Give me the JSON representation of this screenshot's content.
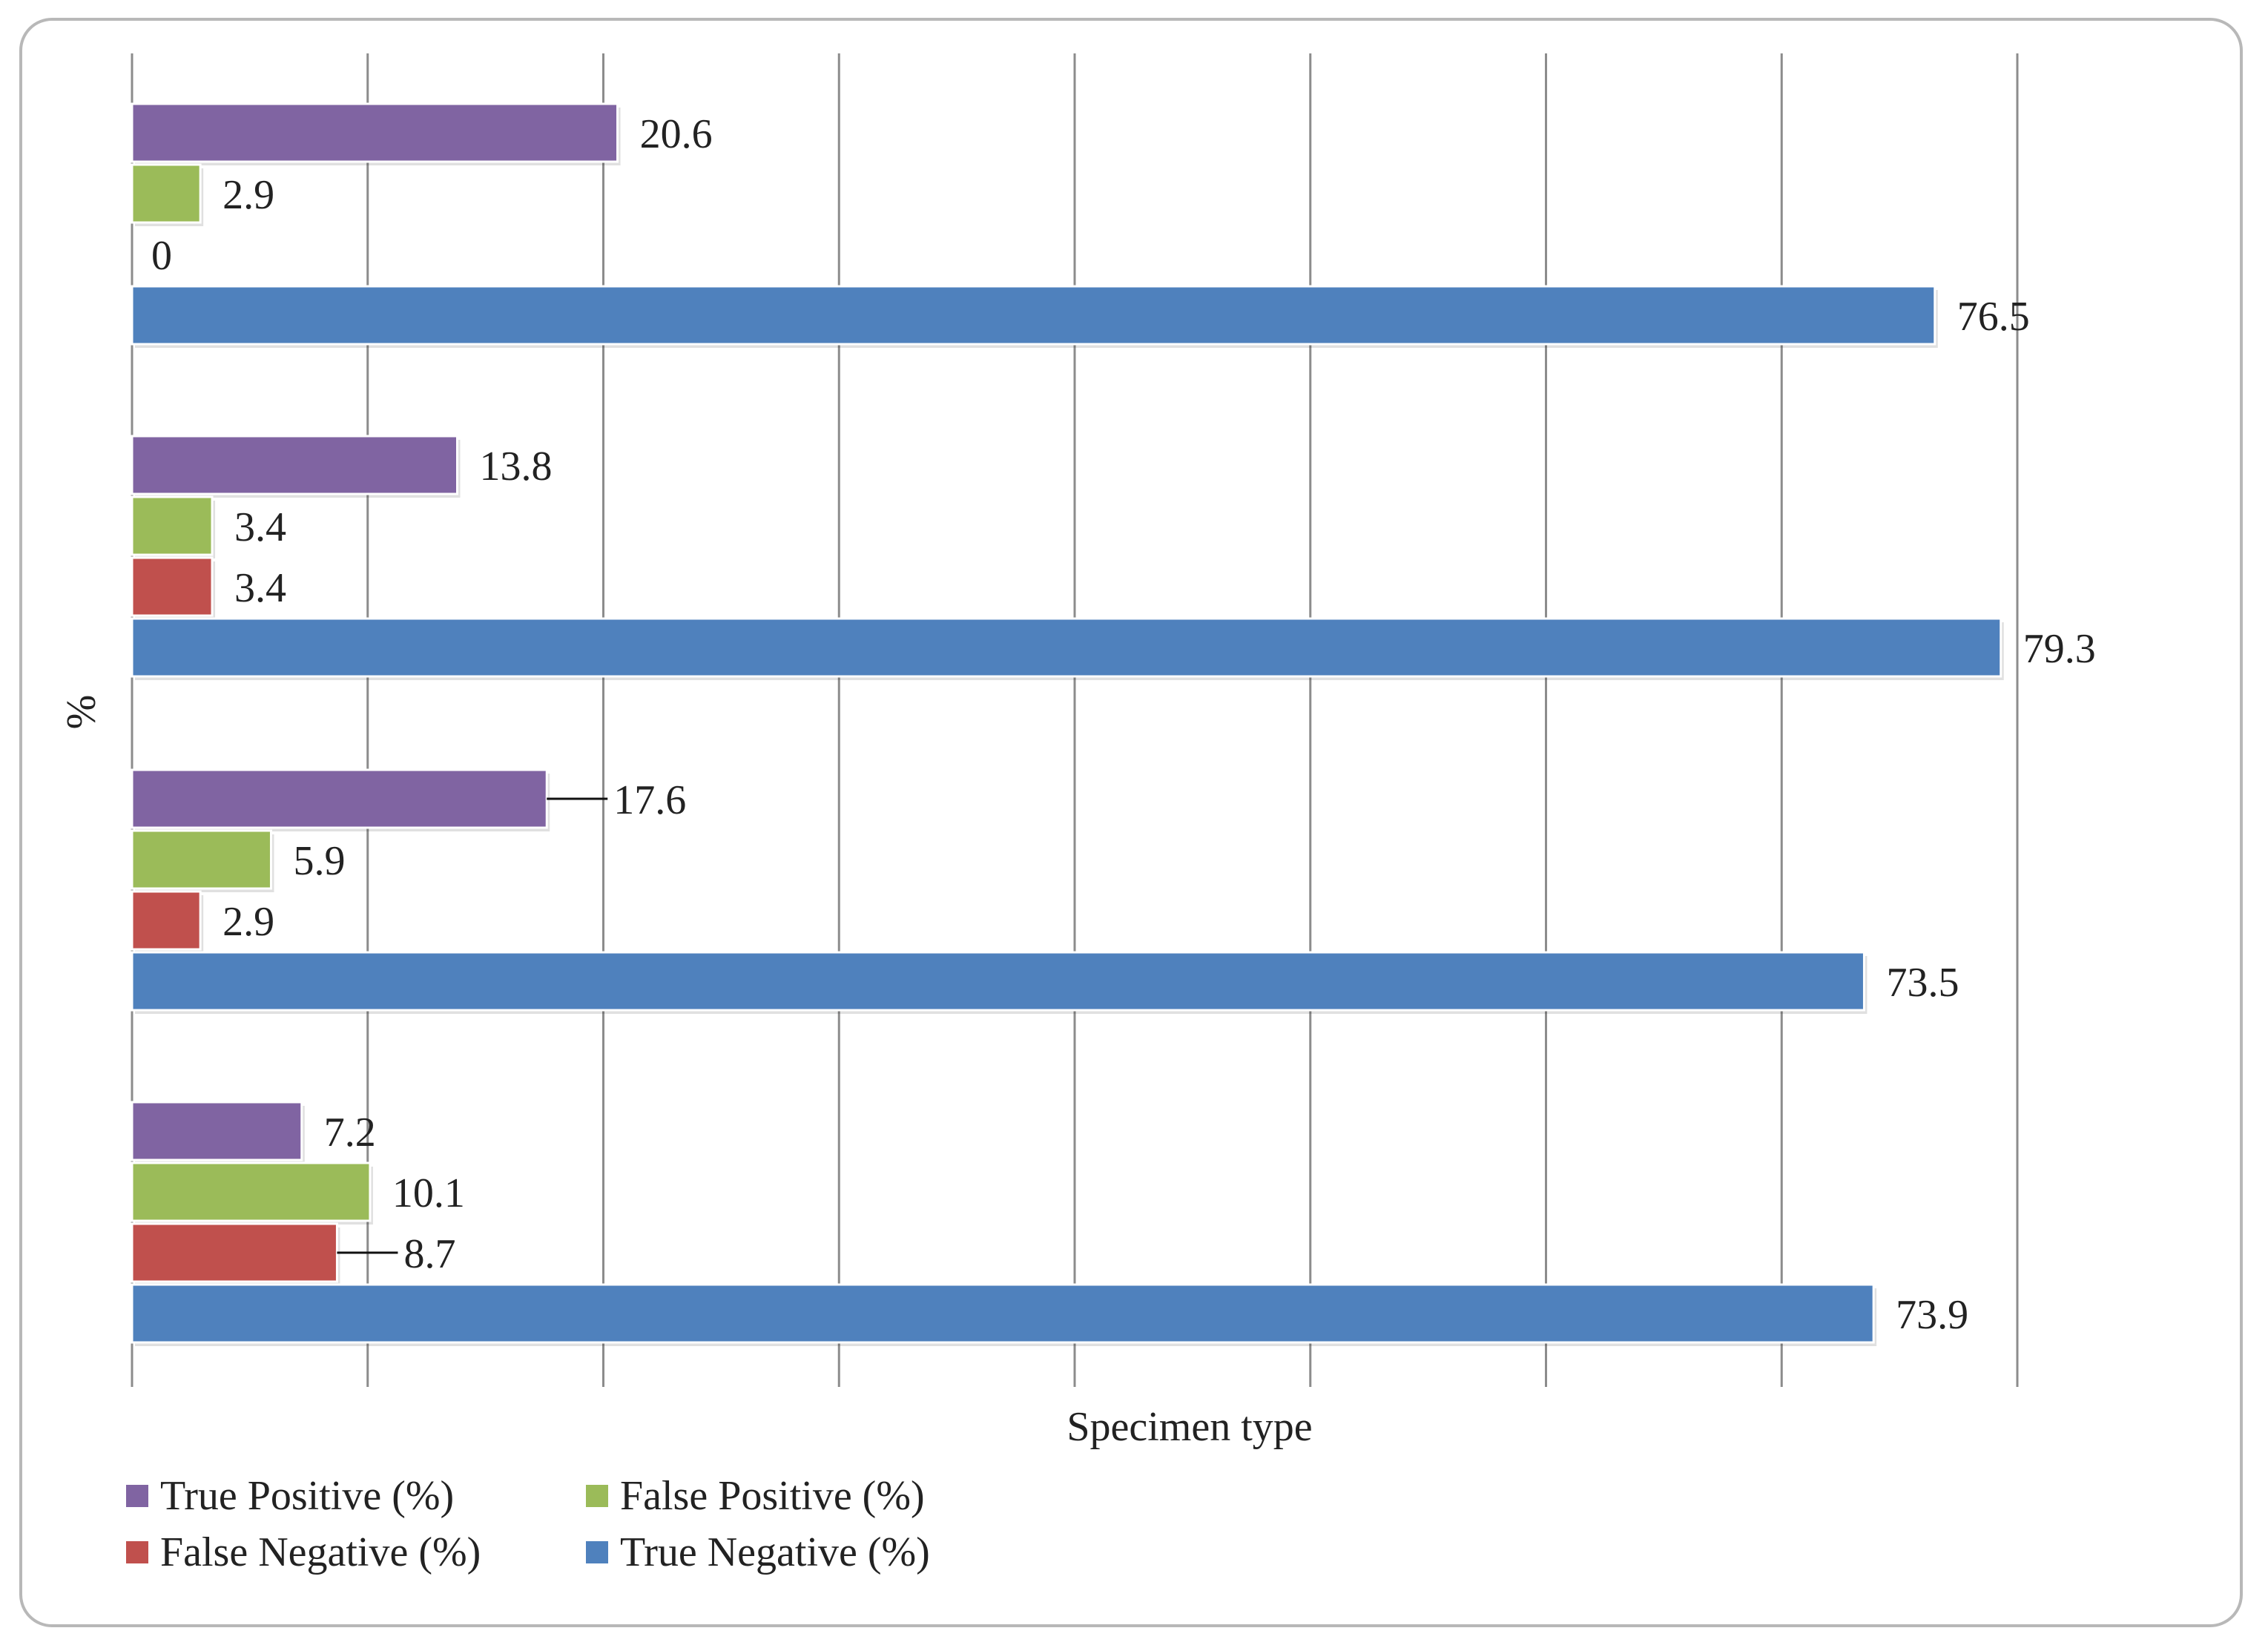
{
  "chart_data": {
    "type": "bar",
    "orientation": "horizontal",
    "xlabel": "Specimen type",
    "ylabel": "%",
    "xlim": [
      0,
      80
    ],
    "grid": true,
    "legend_position": "bottom-left",
    "categories": [
      "",
      "",
      "",
      ""
    ],
    "series": [
      {
        "name": "True Positive (%)",
        "color": "#8064a2",
        "values": [
          20.6,
          13.8,
          17.6,
          7.2
        ]
      },
      {
        "name": "False Positive (%)",
        "color": "#9bbb59",
        "values": [
          2.9,
          3.4,
          5.9,
          10.1
        ]
      },
      {
        "name": "False Negative (%)",
        "color": "#c0504d",
        "values": [
          0,
          3.4,
          2.9,
          8.7
        ]
      },
      {
        "name": "True Negative (%)",
        "color": "#4f81bd",
        "values": [
          76.5,
          79.3,
          73.5,
          73.9
        ]
      }
    ],
    "data_labels": [
      [
        "20.6",
        "2.9",
        "0",
        "76.5"
      ],
      [
        "13.8",
        "3.4",
        "3.4",
        "79.3"
      ],
      [
        "17.6",
        "5.9",
        "2.9",
        "73.5"
      ],
      [
        "7.2",
        "10.1",
        "8.7",
        "73.9"
      ]
    ]
  }
}
